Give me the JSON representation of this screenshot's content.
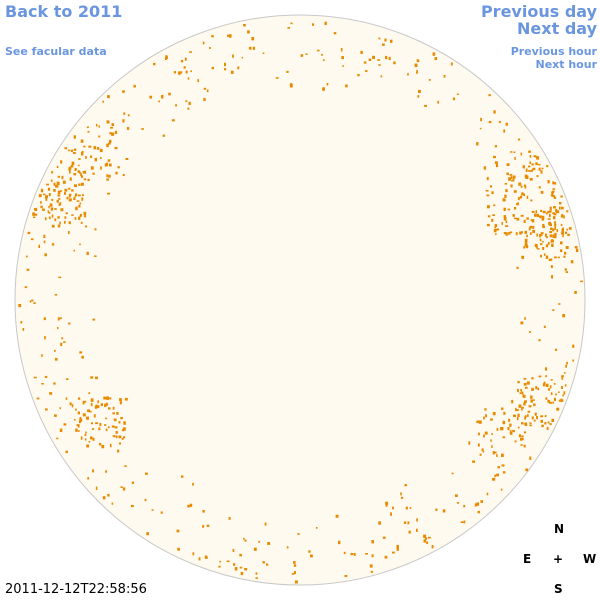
{
  "header": {
    "back_link": "Back to 2011",
    "facular_link": "See facular data",
    "previous_day": "Previous day",
    "next_day": "Next day",
    "previous_hour": "Previous hour",
    "next_hour": "Next hour"
  },
  "compass": {
    "north": "N",
    "east": "E",
    "center": "+",
    "west": "W",
    "south": "S"
  },
  "timestamp": "2011-12-12T22:58:56"
}
